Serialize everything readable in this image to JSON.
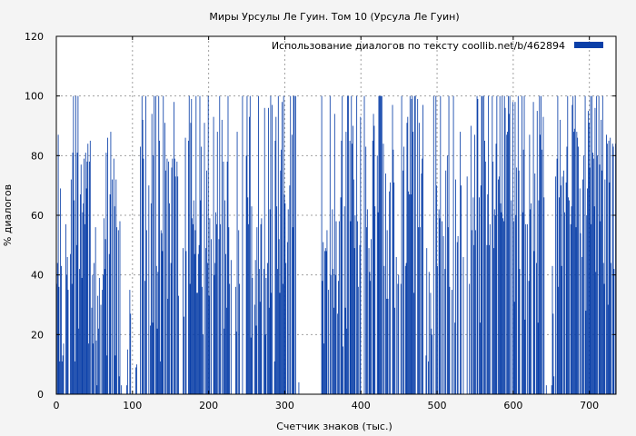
{
  "chart_data": {
    "type": "bar",
    "title": "Миры Урсулы Ле Гуин. Том 10 (Урсула Ле Гуин)",
    "xlabel": "Счетчик знаков (тыс.)",
    "ylabel": "% диалогов",
    "xlim": [
      0,
      735
    ],
    "ylim": [
      0,
      120
    ],
    "x_ticks": [
      0,
      100,
      200,
      300,
      400,
      500,
      600,
      700
    ],
    "y_ticks": [
      0,
      20,
      40,
      60,
      80,
      100,
      120
    ],
    "grid": true,
    "legend_position": "top-right",
    "colors": {
      "bar": "#0a3fa8",
      "background": "#f4f4f4",
      "plot_bg": "#ffffff",
      "grid": "#a0a0a0"
    },
    "series": [
      {
        "name": "Использование диалогов по тексту  coollib.net/b/462894",
        "x_step": 1,
        "values": [
          37,
          44,
          87,
          36,
          11,
          69,
          43,
          11,
          13,
          17,
          0,
          0,
          57,
          40,
          46,
          35,
          0,
          0,
          47,
          72,
          37,
          81,
          100,
          65,
          11,
          100,
          50,
          81,
          100,
          22,
          42,
          67,
          77,
          39,
          61,
          64,
          79,
          57,
          81,
          69,
          78,
          84,
          17,
          78,
          85,
          0,
          29,
          40,
          17,
          44,
          0,
          56,
          18,
          3,
          33,
          22,
          39,
          0,
          30,
          0,
          35,
          40,
          59,
          42,
          52,
          81,
          13,
          86,
          0,
          47,
          67,
          88,
          0,
          72,
          0,
          79,
          63,
          13,
          72,
          56,
          0,
          55,
          6,
          58,
          0,
          3,
          0,
          0,
          0,
          0,
          0,
          0,
          3,
          15,
          0,
          0,
          35,
          27,
          0,
          0,
          0,
          0,
          0,
          0,
          9,
          10,
          0,
          0,
          0,
          0,
          83,
          0,
          100,
          92,
          79,
          0,
          38,
          100,
          55,
          0,
          0,
          70,
          0,
          23,
          64,
          94,
          24,
          80,
          100,
          0,
          100,
          43,
          22,
          41,
          100,
          85,
          11,
          55,
          54,
          48,
          100,
          0,
          91,
          75,
          0,
          79,
          32,
          78,
          64,
          0,
          44,
          76,
          79,
          0,
          98,
          79,
          73,
          0,
          78,
          73,
          33,
          0,
          0,
          0,
          0,
          0,
          49,
          26,
          0,
          86,
          48,
          0,
          0,
          85,
          100,
          37,
          91,
          99,
          59,
          57,
          65,
          47,
          55,
          100,
          34,
          34,
          47,
          50,
          100,
          65,
          83,
          36,
          20,
          0,
          91,
          0,
          49,
          75,
          44,
          100,
          33,
          59,
          0,
          52,
          0,
          0,
          93,
          40,
          44,
          61,
          57,
          88,
          0,
          52,
          100,
          57,
          0,
          92,
          0,
          78,
          22,
          65,
          47,
          29,
          78,
          100,
          56,
          37,
          0,
          45,
          0,
          0,
          0,
          0,
          0,
          36,
          21,
          88,
          0,
          55,
          37,
          0,
          0,
          0,
          100,
          0,
          0,
          0,
          0,
          80,
          100,
          66,
          57,
          93,
          100,
          19,
          63,
          39,
          0,
          0,
          30,
          45,
          23,
          56,
          0,
          100,
          42,
          31,
          57,
          59,
          0,
          0,
          42,
          96,
          20,
          39,
          0,
          44,
          96,
          29,
          62,
          100,
          34,
          97,
          0,
          0,
          11,
          85,
          93,
          63,
          42,
          100,
          52,
          34,
          75,
          82,
          98,
          37,
          100,
          67,
          64,
          44,
          0,
          51,
          62,
          0,
          70,
          100,
          0,
          87,
          56,
          100,
          100,
          0,
          100,
          0,
          0,
          0,
          4,
          0,
          0,
          0,
          0,
          0,
          0,
          0,
          0,
          0,
          0,
          0,
          0,
          0,
          0,
          0,
          0,
          0,
          0,
          0,
          0,
          0,
          0,
          0,
          0,
          0,
          0,
          0,
          0,
          0,
          100,
          38,
          51,
          17,
          48,
          49,
          48,
          55,
          0,
          35,
          0,
          100,
          40,
          0,
          62,
          42,
          29,
          94,
          40,
          58,
          0,
          27,
          38,
          58,
          0,
          66,
          85,
          100,
          16,
          0,
          63,
          29,
          88,
          22,
          100,
          100,
          0,
          85,
          58,
          100,
          84,
          90,
          72,
          49,
          60,
          0,
          100,
          58,
          36,
          0,
          50,
          93,
          0,
          0,
          0,
          0,
          100,
          0,
          83,
          56,
          62,
          0,
          49,
          41,
          38,
          52,
          0,
          85,
          94,
          90,
          63,
          0,
          0,
          80,
          61,
          100,
          100,
          100,
          100,
          100,
          0,
          84,
          43,
          0,
          74,
          32,
          55,
          32,
          0,
          68,
          71,
          0,
          0,
          97,
          82,
          71,
          29,
          0,
          46,
          0,
          37,
          40,
          0,
          0,
          37,
          100,
          0,
          75,
          83,
          0,
          43,
          44,
          91,
          93,
          68,
          67,
          100,
          67,
          99,
          100,
          88,
          34,
          100,
          100,
          0,
          0,
          99,
          56,
          91,
          56,
          0,
          74,
          79,
          97,
          0,
          0,
          0,
          13,
          49,
          0,
          11,
          41,
          0,
          34,
          22,
          20,
          0,
          100,
          0,
          0,
          100,
          70,
          43,
          0,
          62,
          59,
          100,
          0,
          58,
          0,
          53,
          0,
          42,
          75,
          0,
          80,
          56,
          100,
          36,
          0,
          0,
          35,
          0,
          100,
          0,
          24,
          72,
          0,
          51,
          53,
          0,
          0,
          88,
          70,
          0,
          0,
          46,
          0,
          0,
          0,
          0,
          73,
          0,
          0,
          37,
          0,
          90,
          55,
          0,
          66,
          50,
          87,
          55,
          0,
          100,
          99,
          0,
          66,
          24,
          70,
          100,
          100,
          0,
          100,
          85,
          78,
          0,
          50,
          67,
          100,
          50,
          57,
          0,
          0,
          100,
          78,
          49,
          62,
          60,
          84,
          100,
          0,
          72,
          73,
          100,
          64,
          61,
          100,
          59,
          58,
          100,
          96,
          0,
          87,
          88,
          100,
          94,
          100,
          0,
          65,
          0,
          98,
          58,
          31,
          98,
          60,
          76,
          0,
          100,
          75,
          42,
          0,
          0,
          100,
          61,
          82,
          100,
          25,
          57,
          0,
          57,
          0,
          38,
          87,
          62,
          64,
          0,
          0,
          98,
          48,
          74,
          0,
          44,
          95,
          24,
          65,
          100,
          87,
          100,
          82,
          0,
          93,
          66,
          0,
          0,
          3,
          0,
          0,
          0,
          0,
          0,
          0,
          3,
          43,
          27,
          6,
          0,
          73,
          0,
          79,
          100,
          36,
          66,
          92,
          70,
          43,
          73,
          0,
          75,
          61,
          0,
          71,
          83,
          100,
          66,
          65,
          0,
          57,
          63,
          97,
          100,
          88,
          89,
          100,
          56,
          88,
          86,
          83,
          0,
          69,
          54,
          0,
          46,
          72,
          80,
          0,
          100,
          28,
          60,
          69,
          95,
          91,
          76,
          100,
          57,
          100,
          81,
          79,
          63,
          96,
          41,
          100,
          80,
          0,
          100,
          77,
          58,
          92,
          75,
          100,
          44,
          37,
          72,
          0,
          87,
          84,
          30,
          85,
          71,
          86,
          44,
          0,
          84,
          83,
          42,
          0,
          84,
          41
        ]
      }
    ]
  }
}
